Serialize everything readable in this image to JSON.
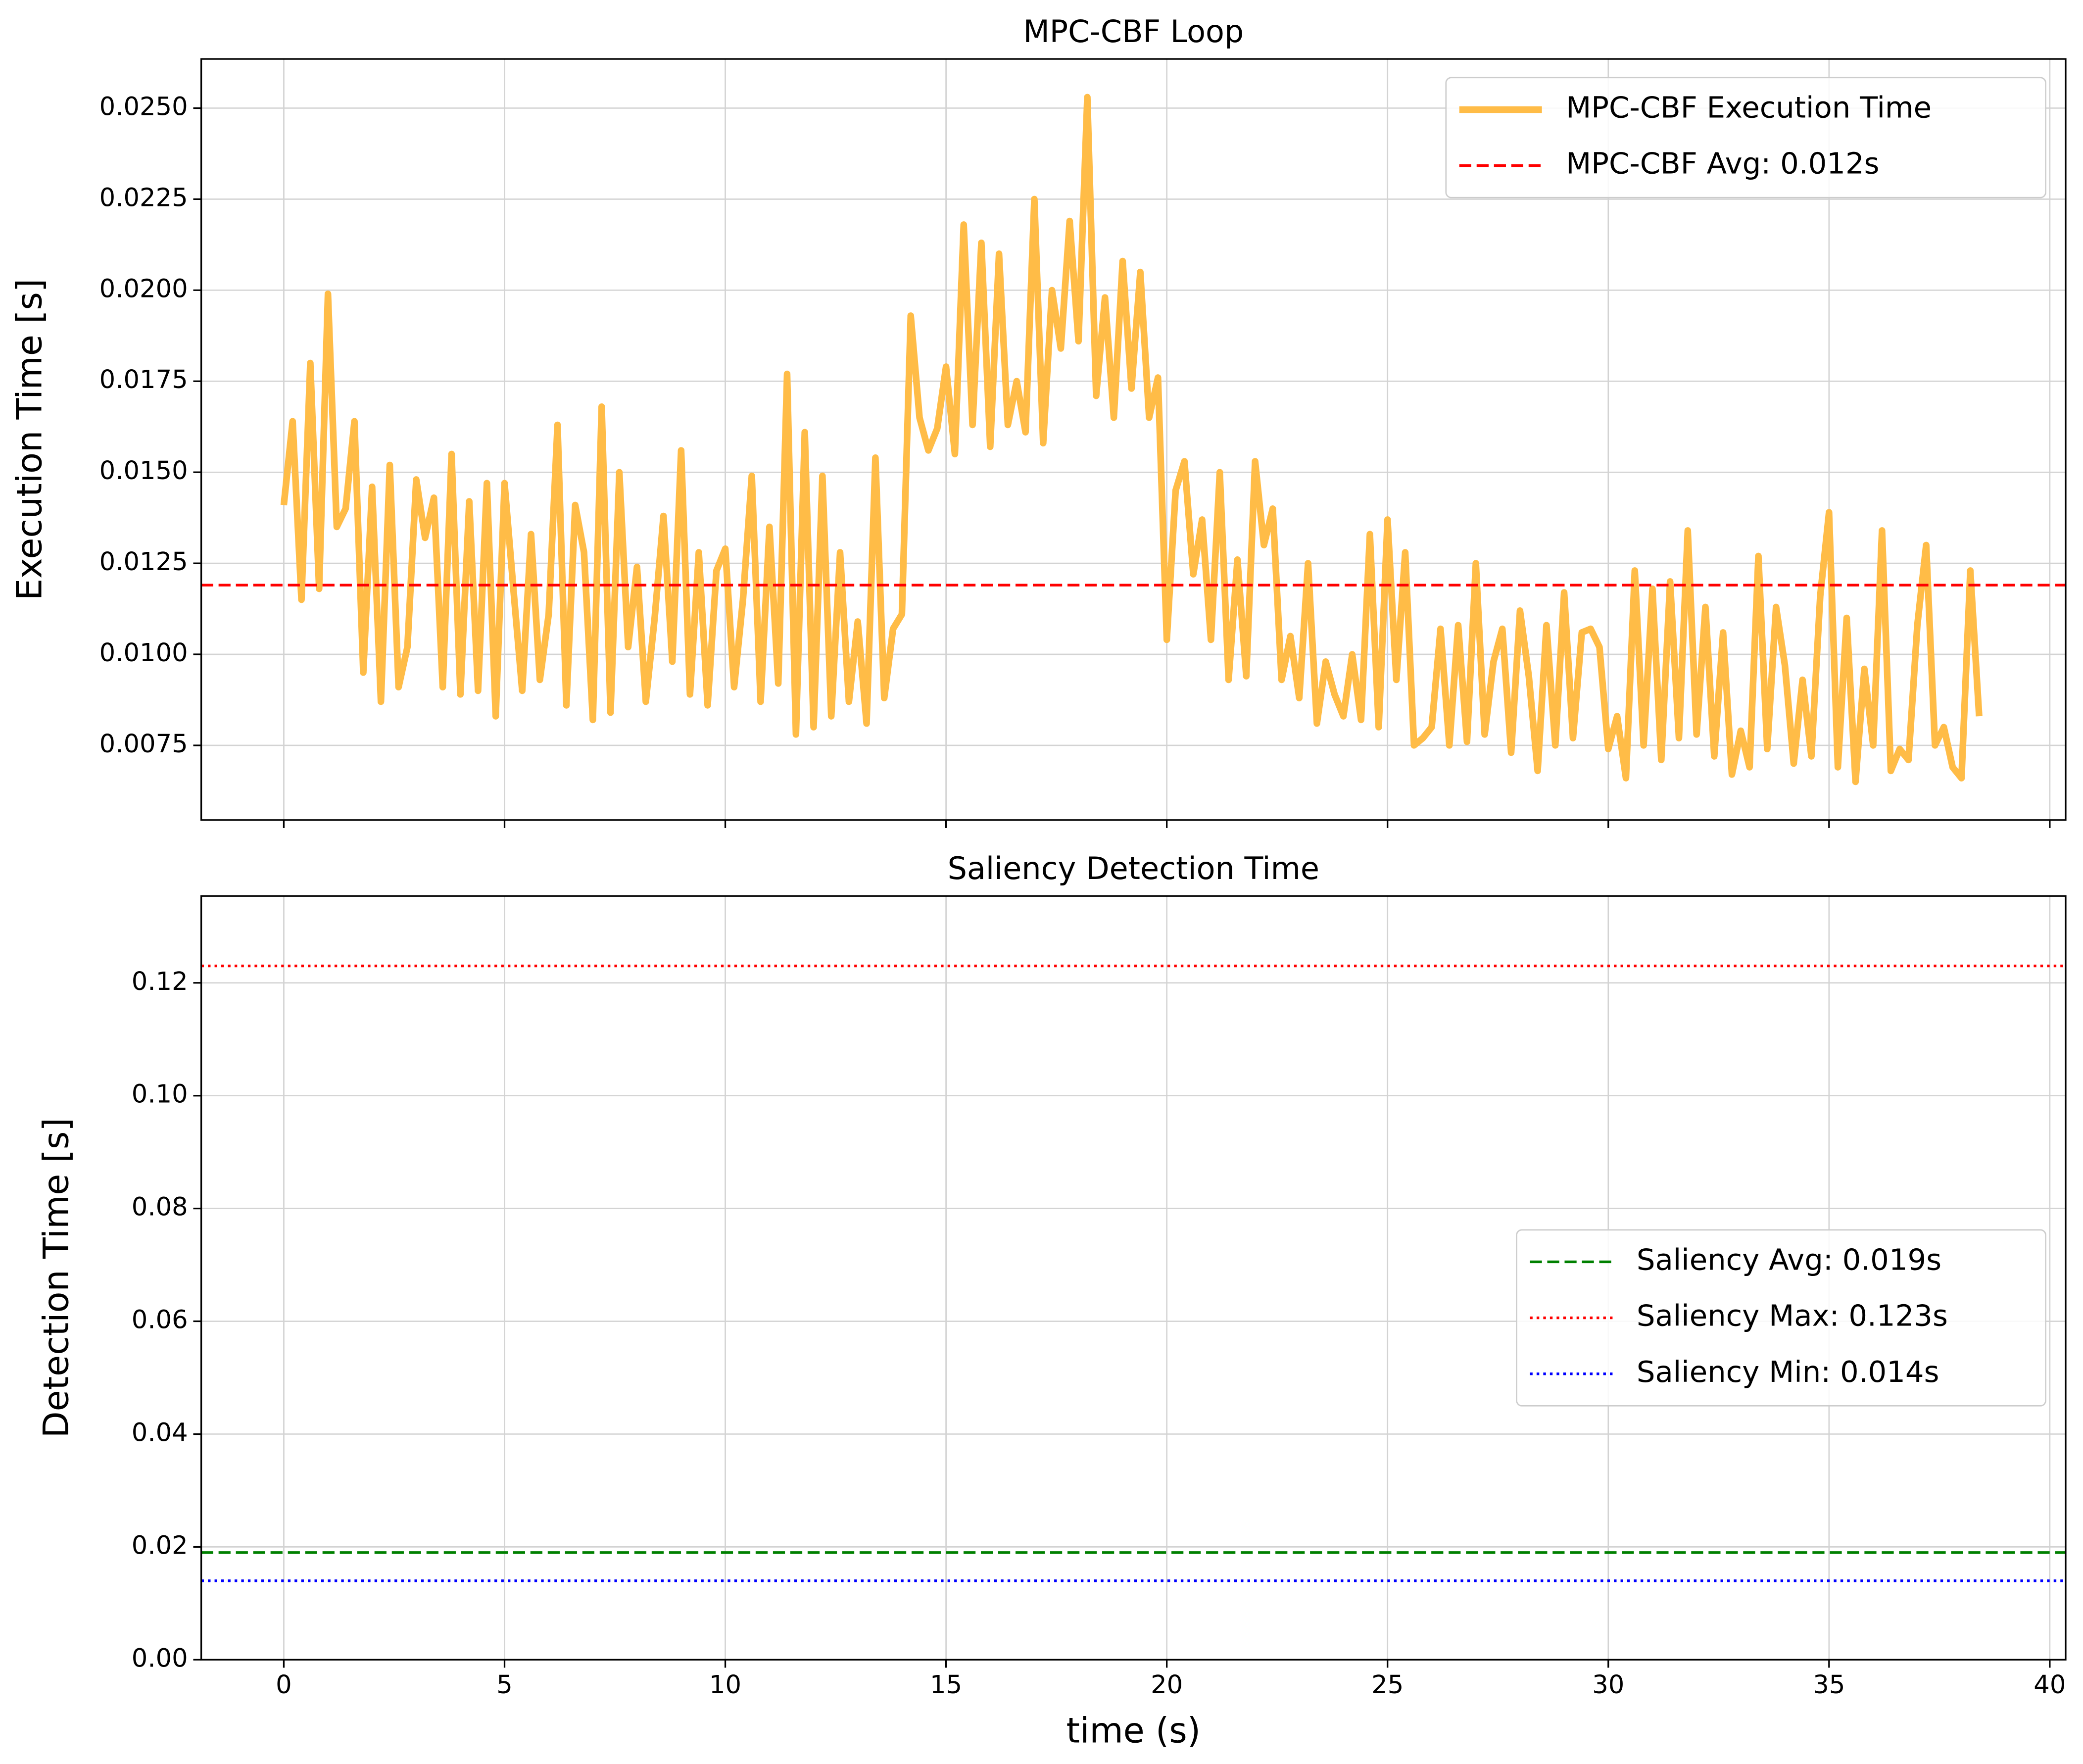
{
  "chart_data": [
    {
      "type": "line",
      "title": "MPC-CBF Loop",
      "ylabel": "Execution Time [s]",
      "xlim": [
        -1.87,
        40.36
      ],
      "xticks": [
        0,
        5,
        10,
        15,
        20,
        25,
        30,
        35,
        40
      ],
      "xticklabels": false,
      "ylim": [
        0.00545,
        0.02635
      ],
      "yticks": [
        0.0075,
        {
          "value": 0.01,
          "label": "0.0100"
        },
        0.0125,
        {
          "value": 0.015,
          "label": "0.0150"
        },
        0.0175,
        {
          "value": 0.02,
          "label": "0.0200"
        },
        0.0225,
        {
          "value": 0.025,
          "label": "0.0250"
        }
      ],
      "grid": true,
      "legend": "upper right",
      "x": [
        0,
        0.2,
        0.4,
        0.6,
        0.8,
        1,
        1.2,
        1.4,
        1.6,
        1.8,
        2,
        2.2,
        2.4,
        2.6,
        2.8,
        3,
        3.2,
        3.4,
        3.6,
        3.8,
        4,
        4.2,
        4.4,
        4.6,
        4.8,
        5,
        5.2,
        5.4,
        5.6,
        5.8,
        6,
        6.2,
        6.4,
        6.6,
        6.8,
        7,
        7.2,
        7.4,
        7.6,
        7.8,
        8,
        8.2,
        8.4,
        8.6,
        8.8,
        9,
        9.2,
        9.4,
        9.6,
        9.8,
        10,
        10.2,
        10.4,
        10.6,
        10.8,
        11,
        11.2,
        11.4,
        11.6,
        11.8,
        12,
        12.2,
        12.4,
        12.6,
        12.8,
        13,
        13.2,
        13.4,
        13.6,
        13.8,
        14,
        14.2,
        14.4,
        14.6,
        14.8,
        15,
        15.2,
        15.4,
        15.6,
        15.8,
        16,
        16.2,
        16.4,
        16.6,
        16.8,
        17,
        17.2,
        17.4,
        17.6,
        17.8,
        18,
        18.2,
        18.4,
        18.6,
        18.8,
        19,
        19.2,
        19.4,
        19.6,
        19.8,
        20,
        20.2,
        20.4,
        20.6,
        20.8,
        21,
        21.2,
        21.4,
        21.6,
        21.8,
        22,
        22.2,
        22.4,
        22.6,
        22.8,
        23,
        23.2,
        23.4,
        23.6,
        23.8,
        24,
        24.2,
        24.4,
        24.6,
        24.8,
        25,
        25.2,
        25.4,
        25.6,
        25.8,
        26,
        26.2,
        26.4,
        26.6,
        26.8,
        27,
        27.2,
        27.4,
        27.6,
        27.8,
        28,
        28.2,
        28.4,
        28.6,
        28.8,
        29,
        29.2,
        29.4,
        29.6,
        29.8,
        30,
        30.2,
        30.4,
        30.6,
        30.8,
        31,
        31.2,
        31.4,
        31.6,
        31.8,
        32,
        32.2,
        32.4,
        32.6,
        32.8,
        33,
        33.2,
        33.4,
        33.6,
        33.8,
        34,
        34.2,
        34.4,
        34.6,
        34.8,
        35,
        35.2,
        35.4,
        35.6,
        35.8,
        36,
        36.2,
        36.4,
        36.6,
        36.8,
        37,
        37.2,
        37.4,
        37.6,
        37.8,
        38,
        38.2,
        38.4
      ],
      "series": [
        {
          "name": "MPC-CBF Execution Time",
          "color": "#ffbc47",
          "values": [
            0.0141,
            0.0164,
            0.0115,
            0.018,
            0.0118,
            0.0199,
            0.0135,
            0.014,
            0.0164,
            0.0095,
            0.0146,
            0.0087,
            0.0152,
            0.0091,
            0.0102,
            0.0148,
            0.0132,
            0.0143,
            0.0091,
            0.0155,
            0.0089,
            0.0142,
            0.009,
            0.0147,
            0.0083,
            0.0147,
            0.0118,
            0.009,
            0.0133,
            0.0093,
            0.0111,
            0.0163,
            0.0086,
            0.0141,
            0.0128,
            0.0082,
            0.0168,
            0.0084,
            0.015,
            0.0102,
            0.0124,
            0.0087,
            0.011,
            0.0138,
            0.0098,
            0.0156,
            0.0089,
            0.0128,
            0.0086,
            0.0123,
            0.0129,
            0.0091,
            0.0115,
            0.0149,
            0.0087,
            0.0135,
            0.0092,
            0.0177,
            0.0078,
            0.0161,
            0.008,
            0.0149,
            0.0083,
            0.0128,
            0.0087,
            0.0109,
            0.0081,
            0.0154,
            0.0088,
            0.0107,
            0.0111,
            0.0193,
            0.0165,
            0.0156,
            0.0162,
            0.0179,
            0.0155,
            0.0218,
            0.0163,
            0.0213,
            0.0157,
            0.021,
            0.0163,
            0.0175,
            0.0161,
            0.0225,
            0.0158,
            0.02,
            0.0184,
            0.0219,
            0.0186,
            0.0253,
            0.0171,
            0.0198,
            0.0165,
            0.0208,
            0.0173,
            0.0205,
            0.0165,
            0.0176,
            0.0104,
            0.0145,
            0.0153,
            0.0122,
            0.0137,
            0.0104,
            0.015,
            0.0093,
            0.0126,
            0.0094,
            0.0153,
            0.013,
            0.014,
            0.0093,
            0.0105,
            0.0088,
            0.0125,
            0.0081,
            0.0098,
            0.0089,
            0.0083,
            0.01,
            0.0082,
            0.0133,
            0.008,
            0.0137,
            0.0093,
            0.0128,
            0.0075,
            0.0077,
            0.008,
            0.0107,
            0.0075,
            0.0108,
            0.0076,
            0.0125,
            0.0078,
            0.0098,
            0.0107,
            0.0073,
            0.0112,
            0.0094,
            0.0068,
            0.0108,
            0.0075,
            0.0117,
            0.0077,
            0.0106,
            0.0107,
            0.0102,
            0.0074,
            0.0083,
            0.0066,
            0.0123,
            0.0075,
            0.0118,
            0.0071,
            0.012,
            0.0077,
            0.0134,
            0.0078,
            0.0113,
            0.0072,
            0.0106,
            0.0067,
            0.0079,
            0.0069,
            0.0127,
            0.0074,
            0.0113,
            0.0097,
            0.007,
            0.0093,
            0.0072,
            0.0116,
            0.0139,
            0.0069,
            0.011,
            0.0065,
            0.0096,
            0.0075,
            0.0134,
            0.0068,
            0.0074,
            0.0071,
            0.0108,
            0.013,
            0.0075,
            0.008,
            0.0069,
            0.0066,
            0.0123,
            0.0083
          ]
        }
      ],
      "hlines": [
        {
          "name": "MPC-CBF Avg: 0.012s",
          "value": 0.0119,
          "color": "#ff0000",
          "style": "dashed"
        }
      ]
    },
    {
      "type": "hlines",
      "title": "Saliency Detection Time",
      "ylabel": "Detection Time [s]",
      "xlabel": "time (s)",
      "xlim": [
        -1.87,
        40.36
      ],
      "xticks": [
        0,
        5,
        10,
        15,
        20,
        25,
        30,
        35,
        40
      ],
      "xticklabels": true,
      "ylim": [
        0,
        0.1354
      ],
      "yticks": [
        {
          "value": 0,
          "label": "0.00"
        },
        0.02,
        0.04,
        0.06,
        0.08,
        {
          "value": 0.1,
          "label": "0.10"
        },
        0.12
      ],
      "grid": true,
      "legend": "center right",
      "hlines": [
        {
          "name": "Saliency Avg: 0.019s",
          "value": 0.019,
          "color": "#008000",
          "style": "dashed"
        },
        {
          "name": "Saliency Max: 0.123s",
          "value": 0.123,
          "color": "#ff0000",
          "style": "dotted"
        },
        {
          "name": "Saliency Min: 0.014s",
          "value": 0.014,
          "color": "#0000ff",
          "style": "dotted"
        }
      ]
    }
  ]
}
